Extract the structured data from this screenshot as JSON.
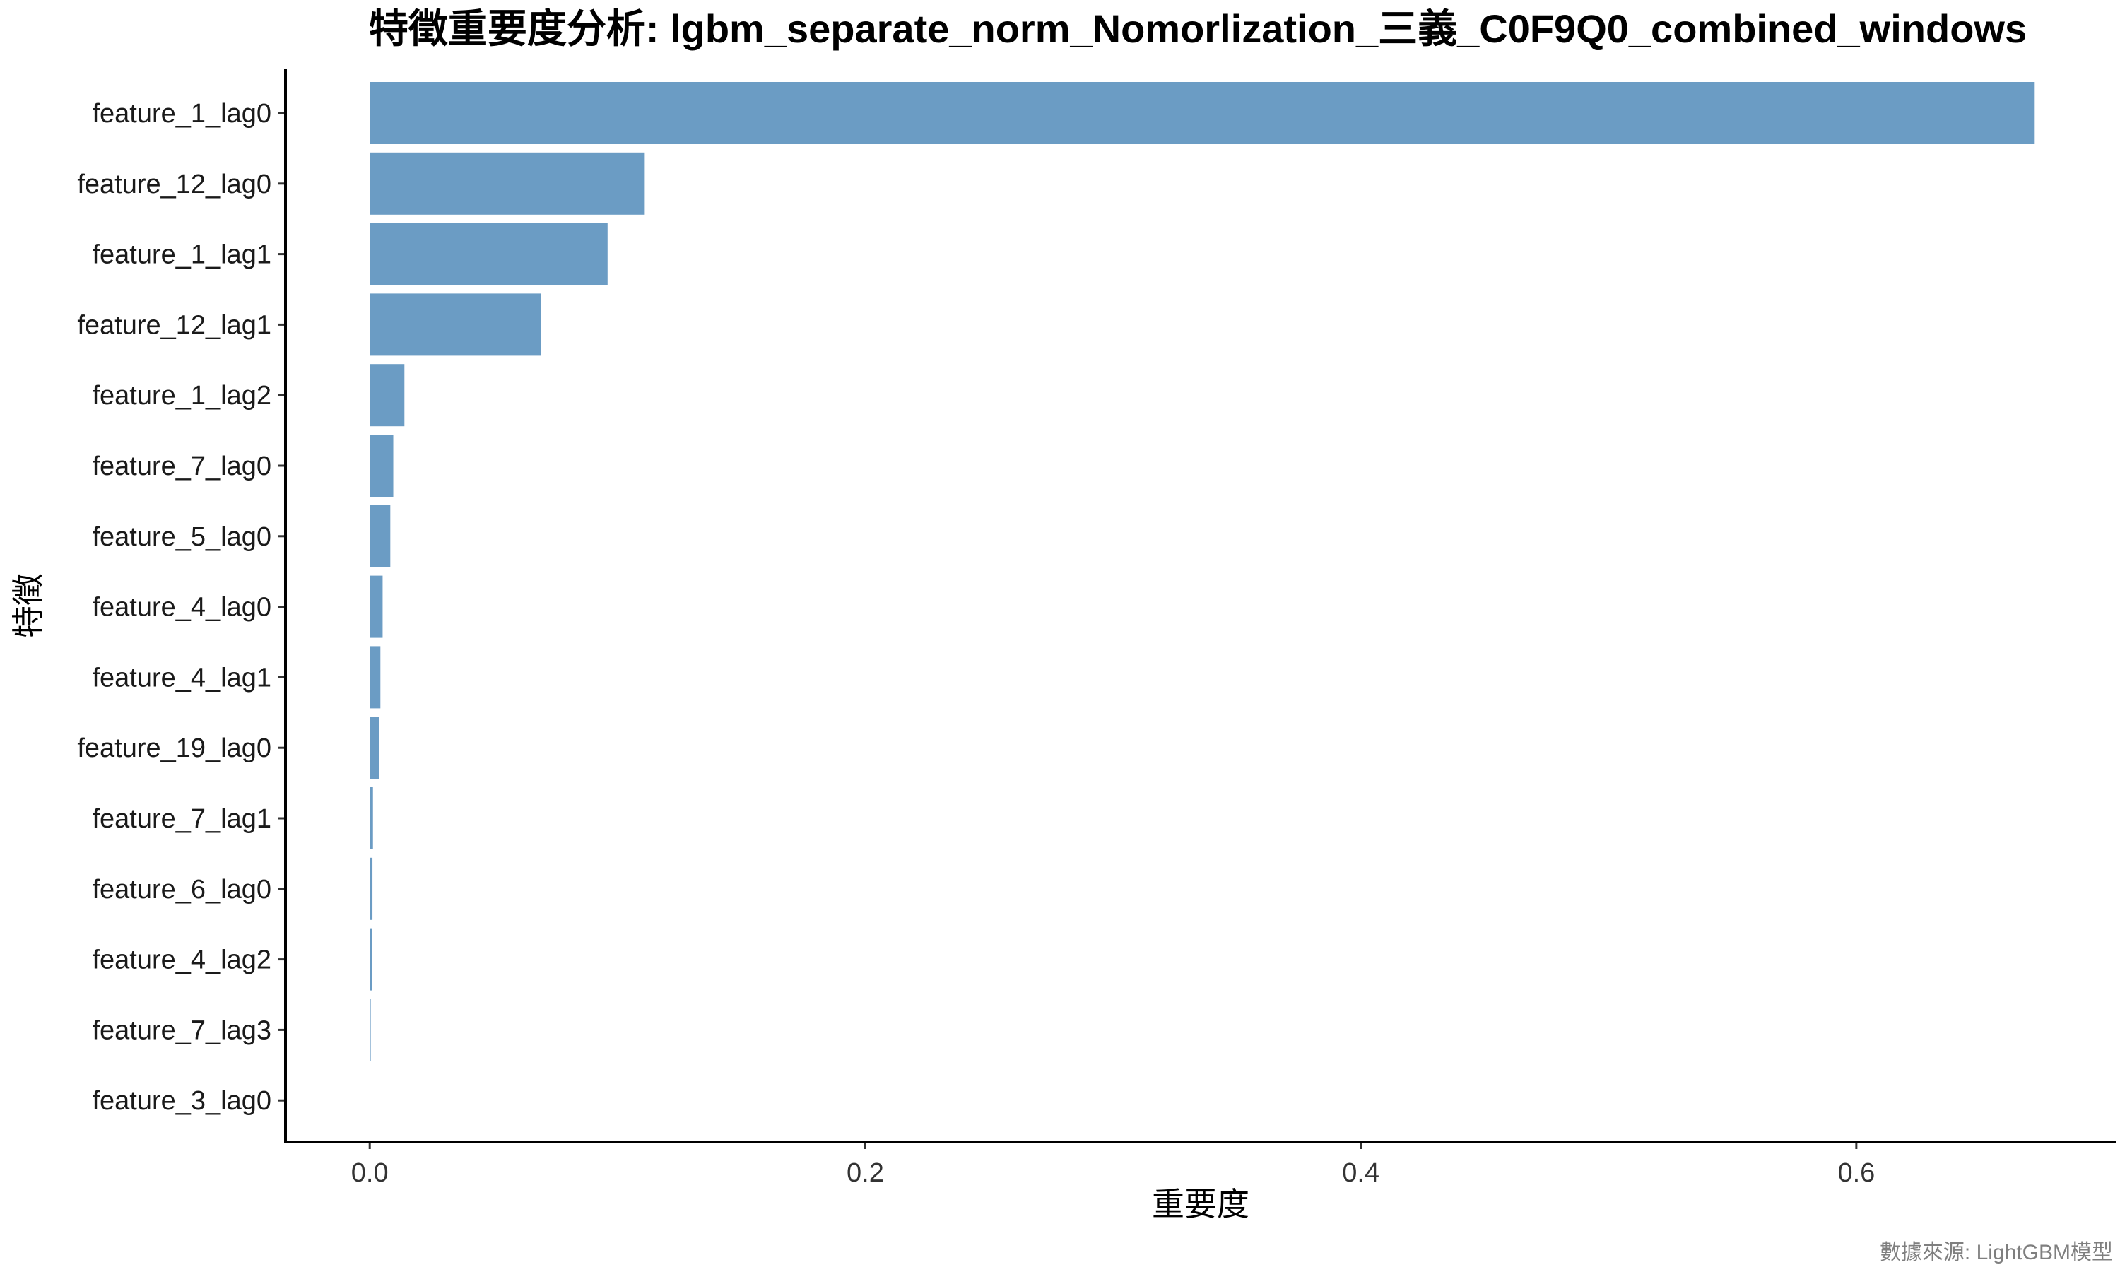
{
  "chart_data": {
    "type": "bar",
    "orientation": "horizontal",
    "title": "特徵重要度分析: lgbm_separate_norm_Nomorlization_三義_C0F9Q0_combined_windows",
    "xlabel": "重要度",
    "ylabel": "特徵",
    "caption": "數據來源: LightGBM模型",
    "categories": [
      "feature_1_lag0",
      "feature_12_lag0",
      "feature_1_lag1",
      "feature_12_lag1",
      "feature_1_lag2",
      "feature_7_lag0",
      "feature_5_lag0",
      "feature_4_lag0",
      "feature_4_lag1",
      "feature_19_lag0",
      "feature_7_lag1",
      "feature_6_lag0",
      "feature_4_lag2",
      "feature_7_lag3",
      "feature_3_lag0"
    ],
    "values": [
      0.672,
      0.111,
      0.096,
      0.069,
      0.014,
      0.0095,
      0.0083,
      0.0052,
      0.0043,
      0.0039,
      0.0013,
      0.0011,
      0.0008,
      0.0004,
      0.0
    ],
    "xlim": [
      -0.034,
      0.705
    ],
    "xticks": [
      0.0,
      0.2,
      0.4,
      0.6
    ],
    "xtick_labels": [
      "0.0",
      "0.2",
      "0.4",
      "0.6"
    ],
    "bar_color": "#6b9cc4",
    "grid": false,
    "legend": "none"
  }
}
